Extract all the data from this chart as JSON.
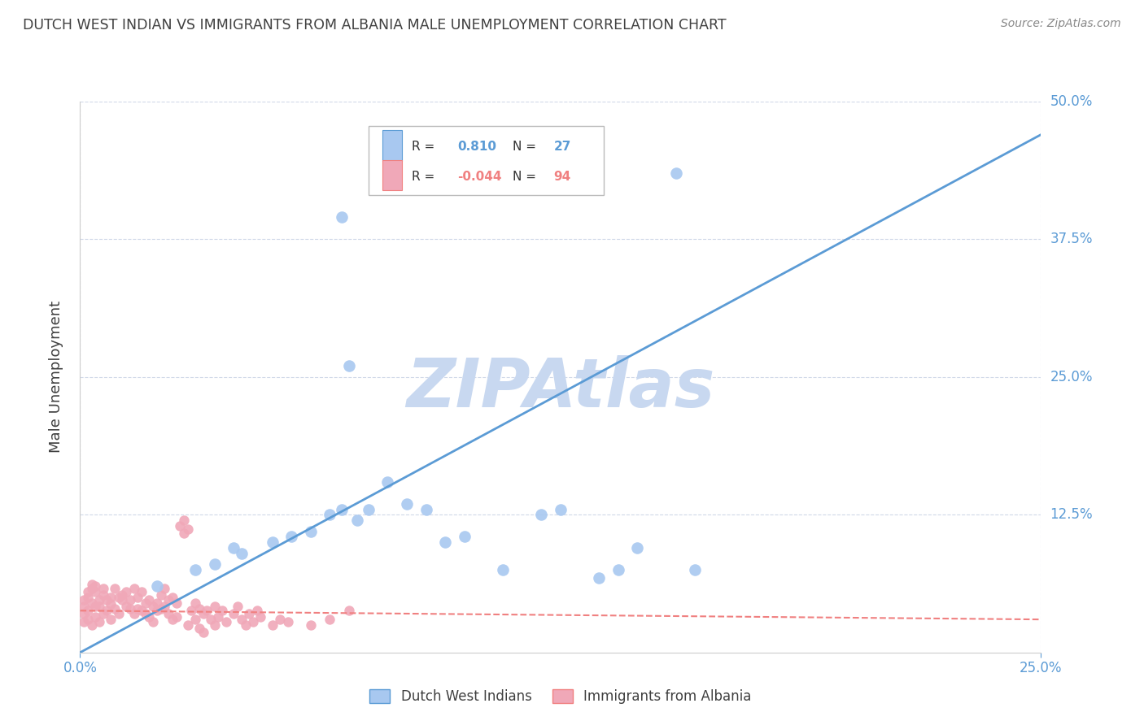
{
  "title": "DUTCH WEST INDIAN VS IMMIGRANTS FROM ALBANIA MALE UNEMPLOYMENT CORRELATION CHART",
  "source": "Source: ZipAtlas.com",
  "ylabel": "Male Unemployment",
  "xlim": [
    0.0,
    0.25
  ],
  "ylim": [
    0.0,
    0.5
  ],
  "xtick_labels": [
    "0.0%",
    "25.0%"
  ],
  "xtick_positions": [
    0.0,
    0.25
  ],
  "ytick_labels": [
    "12.5%",
    "25.0%",
    "37.5%",
    "50.0%"
  ],
  "ytick_positions": [
    0.125,
    0.25,
    0.375,
    0.5
  ],
  "legend_r1_val": "0.810",
  "legend_n1_val": "27",
  "legend_r2_val": "-0.044",
  "legend_n2_val": "94",
  "legend_label1": "Dutch West Indians",
  "legend_label2": "Immigrants from Albania",
  "blue_line_x": [
    0.0,
    0.25
  ],
  "blue_line_y": [
    0.0,
    0.47
  ],
  "red_line_x": [
    0.0,
    0.25
  ],
  "red_line_y": [
    0.038,
    0.03
  ],
  "blue_color": "#5b9bd5",
  "red_color": "#f08080",
  "dot_blue_color": "#a8c8f0",
  "dot_red_color": "#f0a8b8",
  "watermark": "ZIPAtlas",
  "watermark_color": "#c8d8f0",
  "background_color": "#ffffff",
  "grid_color": "#d0d8e8",
  "title_color": "#404040",
  "axis_label_color": "#5b9bd5",
  "blue_scatter": [
    [
      0.02,
      0.06
    ],
    [
      0.03,
      0.075
    ],
    [
      0.035,
      0.08
    ],
    [
      0.04,
      0.095
    ],
    [
      0.042,
      0.09
    ],
    [
      0.05,
      0.1
    ],
    [
      0.055,
      0.105
    ],
    [
      0.06,
      0.11
    ],
    [
      0.065,
      0.125
    ],
    [
      0.068,
      0.13
    ],
    [
      0.072,
      0.12
    ],
    [
      0.075,
      0.13
    ],
    [
      0.08,
      0.155
    ],
    [
      0.085,
      0.135
    ],
    [
      0.09,
      0.13
    ],
    [
      0.095,
      0.1
    ],
    [
      0.1,
      0.105
    ],
    [
      0.11,
      0.075
    ],
    [
      0.12,
      0.125
    ],
    [
      0.125,
      0.13
    ],
    [
      0.135,
      0.068
    ],
    [
      0.14,
      0.075
    ],
    [
      0.145,
      0.095
    ],
    [
      0.16,
      0.075
    ],
    [
      0.068,
      0.395
    ],
    [
      0.155,
      0.435
    ],
    [
      0.07,
      0.26
    ]
  ],
  "red_scatter": [
    [
      0.001,
      0.042
    ],
    [
      0.001,
      0.048
    ],
    [
      0.002,
      0.05
    ],
    [
      0.002,
      0.038
    ],
    [
      0.002,
      0.055
    ],
    [
      0.003,
      0.045
    ],
    [
      0.003,
      0.058
    ],
    [
      0.003,
      0.062
    ],
    [
      0.004,
      0.042
    ],
    [
      0.004,
      0.055
    ],
    [
      0.004,
      0.06
    ],
    [
      0.005,
      0.048
    ],
    [
      0.005,
      0.042
    ],
    [
      0.006,
      0.058
    ],
    [
      0.006,
      0.052
    ],
    [
      0.007,
      0.048
    ],
    [
      0.007,
      0.038
    ],
    [
      0.008,
      0.05
    ],
    [
      0.008,
      0.044
    ],
    [
      0.009,
      0.04
    ],
    [
      0.009,
      0.058
    ],
    [
      0.01,
      0.05
    ],
    [
      0.01,
      0.035
    ],
    [
      0.011,
      0.048
    ],
    [
      0.011,
      0.052
    ],
    [
      0.012,
      0.042
    ],
    [
      0.012,
      0.055
    ],
    [
      0.013,
      0.048
    ],
    [
      0.013,
      0.04
    ],
    [
      0.014,
      0.058
    ],
    [
      0.014,
      0.035
    ],
    [
      0.015,
      0.05
    ],
    [
      0.015,
      0.04
    ],
    [
      0.016,
      0.038
    ],
    [
      0.016,
      0.055
    ],
    [
      0.017,
      0.045
    ],
    [
      0.017,
      0.035
    ],
    [
      0.018,
      0.048
    ],
    [
      0.018,
      0.032
    ],
    [
      0.019,
      0.042
    ],
    [
      0.019,
      0.028
    ],
    [
      0.02,
      0.038
    ],
    [
      0.02,
      0.045
    ],
    [
      0.021,
      0.052
    ],
    [
      0.021,
      0.04
    ],
    [
      0.022,
      0.058
    ],
    [
      0.022,
      0.042
    ],
    [
      0.023,
      0.048
    ],
    [
      0.023,
      0.035
    ],
    [
      0.024,
      0.05
    ],
    [
      0.024,
      0.03
    ],
    [
      0.025,
      0.045
    ],
    [
      0.025,
      0.032
    ],
    [
      0.026,
      0.115
    ],
    [
      0.027,
      0.108
    ],
    [
      0.027,
      0.12
    ],
    [
      0.028,
      0.112
    ],
    [
      0.028,
      0.025
    ],
    [
      0.029,
      0.038
    ],
    [
      0.03,
      0.045
    ],
    [
      0.03,
      0.03
    ],
    [
      0.031,
      0.04
    ],
    [
      0.031,
      0.022
    ],
    [
      0.032,
      0.035
    ],
    [
      0.032,
      0.018
    ],
    [
      0.033,
      0.038
    ],
    [
      0.034,
      0.03
    ],
    [
      0.035,
      0.042
    ],
    [
      0.035,
      0.025
    ],
    [
      0.036,
      0.032
    ],
    [
      0.037,
      0.038
    ],
    [
      0.038,
      0.028
    ],
    [
      0.04,
      0.035
    ],
    [
      0.041,
      0.042
    ],
    [
      0.042,
      0.03
    ],
    [
      0.043,
      0.025
    ],
    [
      0.044,
      0.035
    ],
    [
      0.045,
      0.028
    ],
    [
      0.046,
      0.038
    ],
    [
      0.047,
      0.032
    ],
    [
      0.05,
      0.025
    ],
    [
      0.052,
      0.03
    ],
    [
      0.054,
      0.028
    ],
    [
      0.06,
      0.025
    ],
    [
      0.065,
      0.03
    ],
    [
      0.07,
      0.038
    ],
    [
      0.001,
      0.028
    ],
    [
      0.001,
      0.035
    ],
    [
      0.002,
      0.03
    ],
    [
      0.003,
      0.025
    ],
    [
      0.004,
      0.032
    ],
    [
      0.005,
      0.028
    ],
    [
      0.006,
      0.035
    ],
    [
      0.008,
      0.03
    ]
  ]
}
